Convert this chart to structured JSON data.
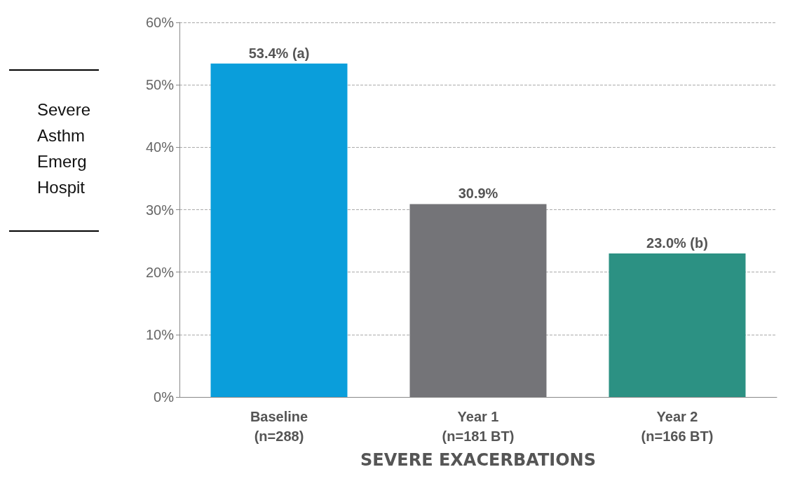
{
  "chart_data": {
    "type": "bar",
    "xlabel": "SEVERE EXACERBATIONS",
    "categories": [
      "Baseline\n(n=288)",
      "Year 1\n(n=181 BT)",
      "Year 2\n(n=166 BT)"
    ],
    "values": [
      53.4,
      30.9,
      23.0
    ],
    "value_labels": [
      "53.4% (a)",
      "30.9%",
      "23.0% (b)"
    ],
    "colors": [
      "#0a9edb",
      "#747478",
      "#2c9183"
    ],
    "ylim": [
      0,
      60
    ],
    "yticks": [
      {
        "value": 0,
        "label": "0%"
      },
      {
        "value": 10,
        "label": "10%"
      },
      {
        "value": 20,
        "label": "20%"
      },
      {
        "value": 30,
        "label": "30%"
      },
      {
        "value": 40,
        "label": "40%"
      },
      {
        "value": 50,
        "label": "50%"
      },
      {
        "value": 60,
        "label": "60%"
      }
    ],
    "grid": "y",
    "annotations": [
      "Severe\nAsthm\nEmerg\nHospit"
    ]
  }
}
